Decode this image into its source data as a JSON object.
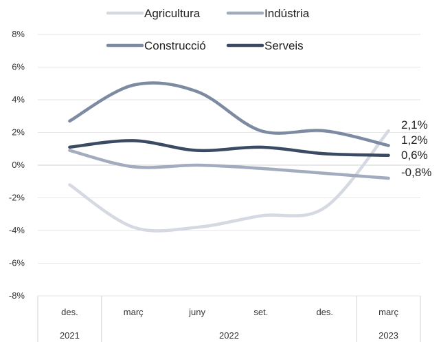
{
  "chart_data": {
    "type": "line",
    "title": "",
    "xlabel": "",
    "ylabel": "",
    "ylim": [
      -8,
      8
    ],
    "y_ticks": [
      "8%",
      "6%",
      "4%",
      "2%",
      "0%",
      "-2%",
      "-4%",
      "-6%",
      "-8%"
    ],
    "y_tick_values": [
      8,
      6,
      4,
      2,
      0,
      -2,
      -4,
      -6,
      -8
    ],
    "categories": [
      "des.",
      "març",
      "juny",
      "set.",
      "des.",
      "març"
    ],
    "years": [
      {
        "label": "2021",
        "span": [
          0,
          0
        ]
      },
      {
        "label": "2022",
        "span": [
          1,
          4
        ]
      },
      {
        "label": "2023",
        "span": [
          5,
          5
        ]
      }
    ],
    "grid": true,
    "legend_position": "top",
    "series": [
      {
        "name": "Agricultura",
        "color": "#d5d9e1",
        "values": [
          -1.2,
          -3.8,
          -3.8,
          -3.1,
          -2.6,
          2.1
        ],
        "end_label": "2,1%"
      },
      {
        "name": "Indústria",
        "color": "#a3abbe",
        "values": [
          0.9,
          -0.1,
          0.0,
          -0.2,
          -0.5,
          -0.8
        ],
        "end_label": "-0,8%"
      },
      {
        "name": "Construcció",
        "color": "#7c8aa2",
        "values": [
          2.7,
          4.9,
          4.5,
          2.1,
          2.1,
          1.2
        ],
        "end_label": "1,2%"
      },
      {
        "name": "Serveis",
        "color": "#3b4a63",
        "values": [
          1.1,
          1.5,
          0.9,
          1.1,
          0.7,
          0.6
        ],
        "end_label": "0,6%"
      }
    ]
  }
}
